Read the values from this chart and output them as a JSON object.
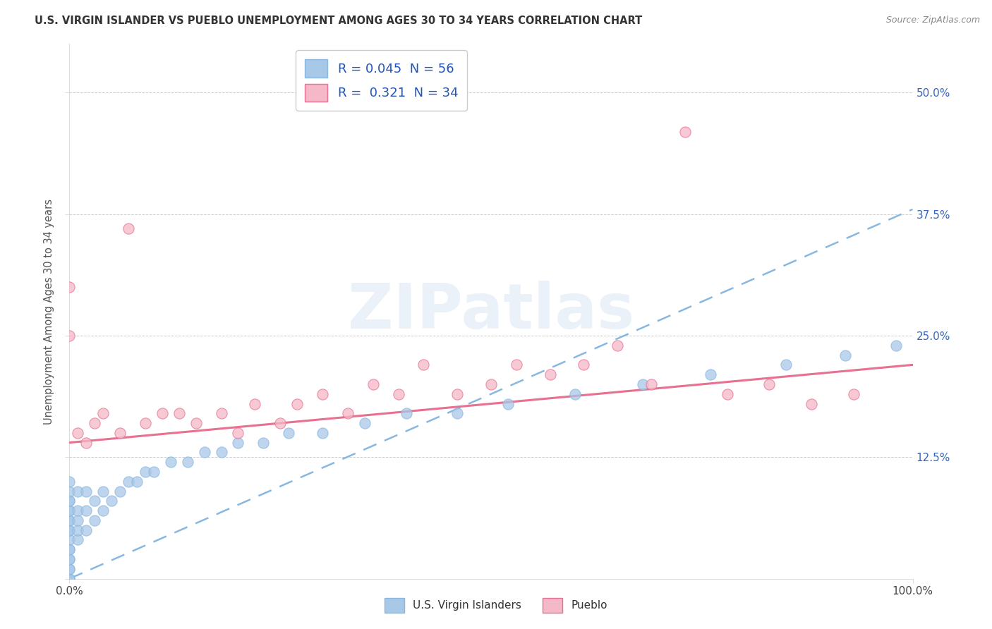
{
  "title": "U.S. VIRGIN ISLANDER VS PUEBLO UNEMPLOYMENT AMONG AGES 30 TO 34 YEARS CORRELATION CHART",
  "source": "Source: ZipAtlas.com",
  "ylabel": "Unemployment Among Ages 30 to 34 years",
  "xlim": [
    0,
    1.0
  ],
  "ylim": [
    0,
    0.55
  ],
  "xticks": [
    0.0,
    1.0
  ],
  "xtick_labels": [
    "0.0%",
    "100.0%"
  ],
  "yticks": [
    0.0,
    0.125,
    0.25,
    0.375,
    0.5
  ],
  "ytick_labels_right": [
    "",
    "12.5%",
    "25.0%",
    "37.5%",
    "50.0%"
  ],
  "background_color": "#ffffff",
  "watermark_text": "ZIPatlas",
  "series1_color": "#a8c8e8",
  "series2_color": "#f5b8c8",
  "line1_color": "#88b8e0",
  "line2_color": "#e87090",
  "series1_label": "U.S. Virgin Islanders",
  "series2_label": "Pueblo",
  "r1": 0.045,
  "n1": 56,
  "r2": 0.321,
  "n2": 34,
  "vi_x": [
    0.0,
    0.0,
    0.0,
    0.0,
    0.0,
    0.0,
    0.0,
    0.0,
    0.0,
    0.0,
    0.0,
    0.0,
    0.0,
    0.0,
    0.0,
    0.0,
    0.0,
    0.0,
    0.0,
    0.0,
    0.01,
    0.01,
    0.01,
    0.01,
    0.01,
    0.02,
    0.02,
    0.02,
    0.03,
    0.03,
    0.04,
    0.04,
    0.05,
    0.06,
    0.07,
    0.08,
    0.09,
    0.1,
    0.12,
    0.14,
    0.16,
    0.18,
    0.2,
    0.23,
    0.26,
    0.3,
    0.35,
    0.4,
    0.46,
    0.52,
    0.6,
    0.68,
    0.76,
    0.85,
    0.92,
    0.98
  ],
  "vi_y": [
    0.0,
    0.0,
    0.0,
    0.01,
    0.01,
    0.02,
    0.02,
    0.03,
    0.03,
    0.04,
    0.05,
    0.05,
    0.06,
    0.06,
    0.07,
    0.07,
    0.08,
    0.08,
    0.09,
    0.1,
    0.04,
    0.05,
    0.06,
    0.07,
    0.09,
    0.05,
    0.07,
    0.09,
    0.06,
    0.08,
    0.07,
    0.09,
    0.08,
    0.09,
    0.1,
    0.1,
    0.11,
    0.11,
    0.12,
    0.12,
    0.13,
    0.13,
    0.14,
    0.14,
    0.15,
    0.15,
    0.16,
    0.17,
    0.17,
    0.18,
    0.19,
    0.2,
    0.21,
    0.22,
    0.23,
    0.24
  ],
  "pueblo_x": [
    0.0,
    0.0,
    0.01,
    0.02,
    0.03,
    0.04,
    0.06,
    0.07,
    0.09,
    0.11,
    0.13,
    0.15,
    0.18,
    0.2,
    0.22,
    0.25,
    0.27,
    0.3,
    0.33,
    0.36,
    0.39,
    0.42,
    0.46,
    0.5,
    0.53,
    0.57,
    0.61,
    0.65,
    0.69,
    0.73,
    0.78,
    0.83,
    0.88,
    0.93
  ],
  "pueblo_y": [
    0.25,
    0.3,
    0.15,
    0.14,
    0.16,
    0.17,
    0.15,
    0.36,
    0.16,
    0.17,
    0.17,
    0.16,
    0.17,
    0.15,
    0.18,
    0.16,
    0.18,
    0.19,
    0.17,
    0.2,
    0.19,
    0.22,
    0.19,
    0.2,
    0.22,
    0.21,
    0.22,
    0.24,
    0.2,
    0.46,
    0.19,
    0.2,
    0.18,
    0.19
  ],
  "vi_line_x0": 0.0,
  "vi_line_x1": 1.0,
  "vi_line_y0": 0.0,
  "vi_line_y1": 0.38,
  "pueblo_line_x0": 0.0,
  "pueblo_line_x1": 1.0,
  "pueblo_line_y0": 0.14,
  "pueblo_line_y1": 0.22
}
